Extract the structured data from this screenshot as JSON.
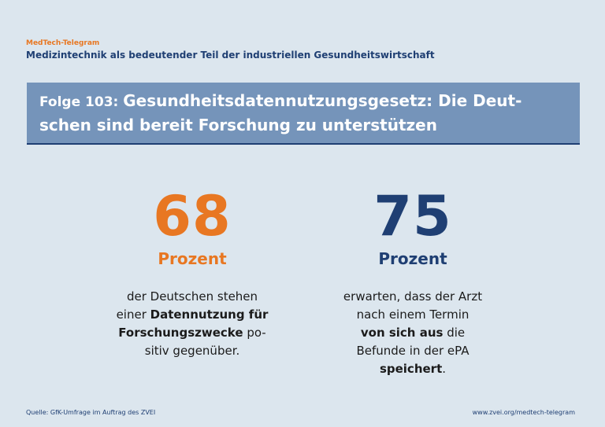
{
  "header": {
    "brand": "MedTech-Telegram",
    "series_title": "Medizintechnik als bedeutender Teil der industriellen Gesundheitswirtschaft"
  },
  "banner": {
    "prefix": "Folge 103: ",
    "line1": "Gesundheitsdatennutzungsgesetz: Die Deut-",
    "line2": "schen sind bereit Forschung zu unterstützen"
  },
  "stats": [
    {
      "value": "68",
      "unit": "Prozent",
      "color": "#e87722",
      "lines": [
        {
          "parts": [
            {
              "text": "der Deutschen stehen",
              "bold": false
            }
          ]
        },
        {
          "parts": [
            {
              "text": "einer ",
              "bold": false
            },
            {
              "text": "Datennutzung für",
              "bold": true
            }
          ]
        },
        {
          "parts": [
            {
              "text": "Forschungszwecke",
              "bold": true
            },
            {
              "text": " po-",
              "bold": false
            }
          ]
        },
        {
          "parts": [
            {
              "text": "sitiv gegenüber.",
              "bold": false
            }
          ]
        }
      ]
    },
    {
      "value": "75",
      "unit": "Prozent",
      "color": "#1f3f73",
      "lines": [
        {
          "parts": [
            {
              "text": "erwarten, dass der Arzt",
              "bold": false
            }
          ]
        },
        {
          "parts": [
            {
              "text": "nach einem Termin",
              "bold": false
            }
          ]
        },
        {
          "parts": [
            {
              "text": "von sich aus",
              "bold": true
            },
            {
              "text": " die",
              "bold": false
            }
          ]
        },
        {
          "parts": [
            {
              "text": "Befunde in der ePA",
              "bold": false
            }
          ]
        },
        {
          "parts": [
            {
              "text": "speichert",
              "bold": true
            },
            {
              "text": ".",
              "bold": false
            }
          ]
        }
      ]
    }
  ],
  "footer": {
    "source": "Quelle: GfK-Umfrage im Auftrag des ZVEI",
    "url": "www.zvei.org/medtech-telegram"
  }
}
